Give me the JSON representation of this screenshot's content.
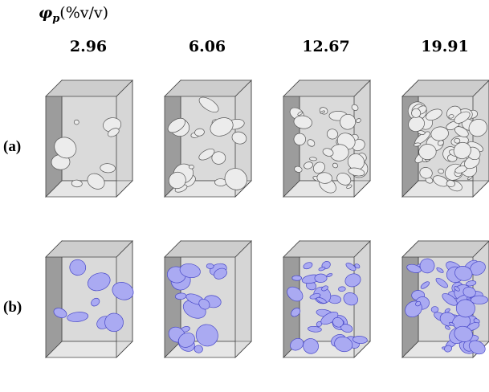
{
  "header": {
    "symbol": "φ",
    "subscript": "p",
    "unit": "(%v/v)"
  },
  "columns": [
    "2.96",
    "6.06",
    "12.67",
    "19.91"
  ],
  "rows": [
    "(a)",
    "(b)"
  ]
}
